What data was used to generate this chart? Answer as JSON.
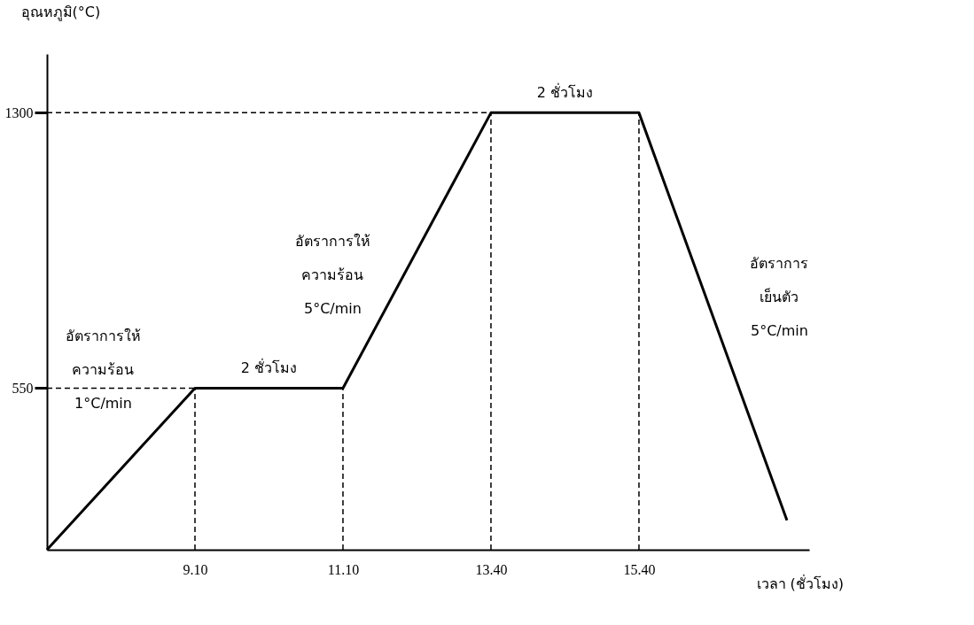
{
  "chart_data": {
    "type": "line",
    "categories": [
      null,
      "9.10",
      "11.10",
      "13.40",
      "15.40",
      null
    ],
    "series": [
      {
        "color": "#000000",
        "values": [
          110,
          550,
          550,
          1300,
          1300,
          190
        ]
      }
    ],
    "xlabel": "เวลา (ชั่วโมง)",
    "ylabel": "อุณหภูมิ(°C)",
    "ylim": [
      110,
      1460
    ],
    "yticks": [
      550,
      1300
    ],
    "ref_lines": [
      {
        "axis": "y",
        "value": 550,
        "line_style": "dashed",
        "color": "#000000"
      },
      {
        "axis": "y",
        "value": 1300,
        "line_style": "dashed",
        "color": "#000000"
      },
      {
        "axis": "x",
        "value": "9.10",
        "line_style": "dashed",
        "color": "#000000"
      },
      {
        "axis": "x",
        "value": "11.10",
        "line_style": "dashed",
        "color": "#000000"
      },
      {
        "axis": "x",
        "value": "13.40",
        "line_style": "dashed",
        "color": "#000000"
      },
      {
        "axis": "x",
        "value": "15.40",
        "line_style": "dashed",
        "color": "#000000"
      }
    ],
    "annotations": [
      "อัตราการให้\nความร้อน\n1°C/min",
      "2 ชั่วโมง",
      "อัตราการให้\nความร้อน\n5°C/min",
      "2 ชั่วโมง",
      "อัตราการ\nเย็นตัว\n5°C/min"
    ],
    "grid": false,
    "marker": "none",
    "line_style": "solid"
  }
}
